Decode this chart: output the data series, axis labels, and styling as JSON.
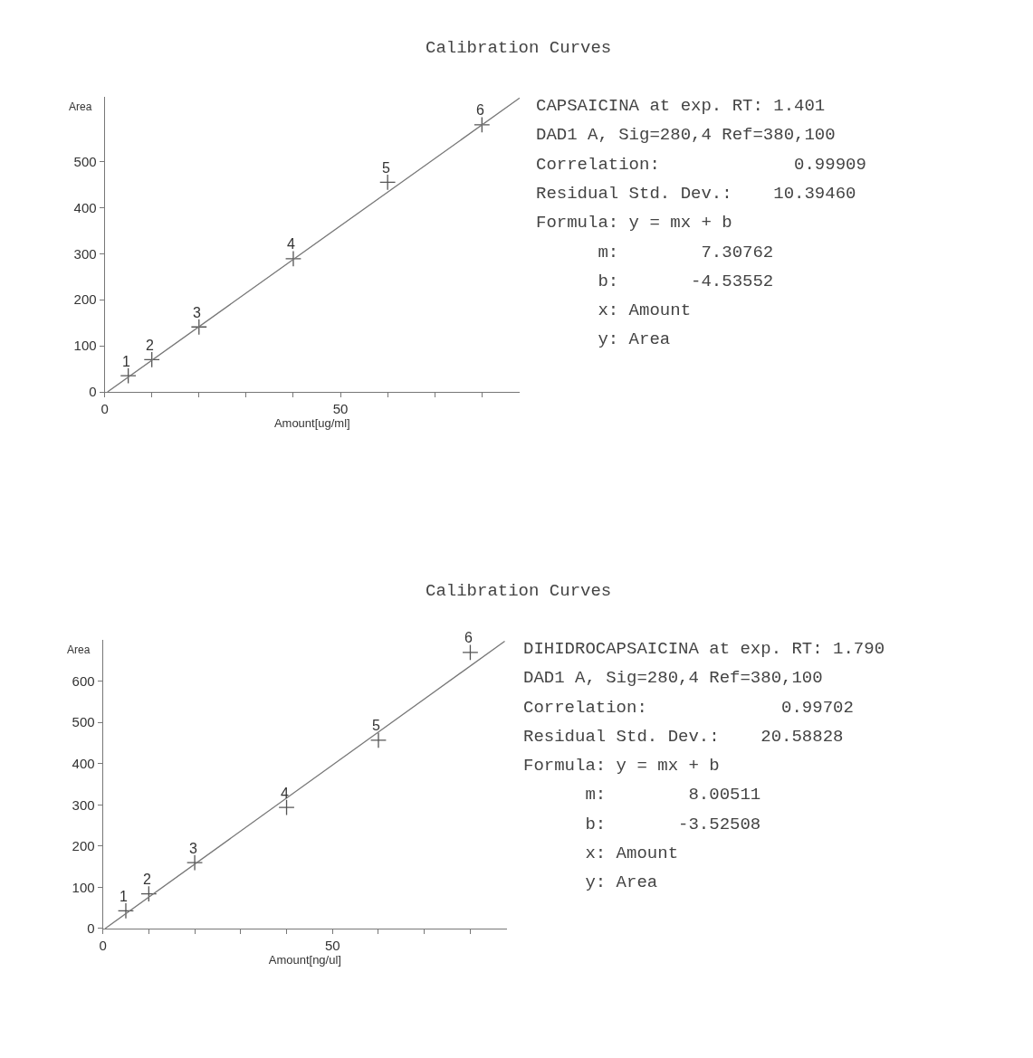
{
  "chart_data": [
    {
      "type": "scatter",
      "title": "Calibration Curves",
      "xlabel": "Amount[ug/ml]",
      "ylabel": "Area",
      "x": [
        5,
        10,
        20,
        40,
        60,
        80
      ],
      "series": [
        {
          "marker": "cross",
          "color": "#555555",
          "values": [
            35,
            70,
            141,
            289,
            455,
            580
          ]
        },
        {
          "type": "line",
          "color": "#777777",
          "x": [
            0.6,
            88
          ],
          "values": [
            0,
            638
          ]
        }
      ],
      "xlim": [
        0,
        88
      ],
      "ylim": [
        0,
        640
      ],
      "xticks": [
        0,
        {
          "value": 10,
          "label": null
        },
        {
          "value": 20,
          "label": null
        },
        {
          "value": 30,
          "label": null
        },
        {
          "value": 40,
          "label": null
        },
        50,
        {
          "value": 60,
          "label": null
        },
        {
          "value": 70,
          "label": null
        },
        {
          "value": 80,
          "label": null
        }
      ],
      "yticks": [
        0,
        100,
        200,
        300,
        400,
        500
      ],
      "annotations": [
        {
          "text": "1",
          "x": 5,
          "y": 35
        },
        {
          "text": "2",
          "x": 10,
          "y": 70
        },
        {
          "text": "3",
          "x": 20,
          "y": 141
        },
        {
          "text": "4",
          "x": 40,
          "y": 289
        },
        {
          "text": "5",
          "x": 60,
          "y": 455
        },
        {
          "text": "6",
          "x": 80,
          "y": 580
        },
        "CAPSAICINA at exp. RT: 1.401",
        "DAD1 A, Sig=280,4 Ref=380,100",
        "Correlation:             0.99909",
        "Residual Std. Dev.:    10.39460",
        "Formula: y = mx + b",
        "      m:        7.30762",
        "      b:       -4.53552",
        "      x: Amount",
        "      y: Area"
      ]
    },
    {
      "type": "scatter",
      "title": "Calibration Curves",
      "xlabel": "Amount[ng/ul]",
      "ylabel": "Area",
      "x": [
        5,
        10,
        20,
        40,
        60,
        80
      ],
      "series": [
        {
          "marker": "cross",
          "color": "#555555",
          "values": [
            43,
            84,
            160,
            294,
            457,
            670
          ]
        },
        {
          "type": "line",
          "color": "#777777",
          "x": [
            0.5,
            87.5
          ],
          "values": [
            0,
            697
          ]
        }
      ],
      "xlim": [
        0,
        88
      ],
      "ylim": [
        0,
        700
      ],
      "xticks": [
        0,
        {
          "value": 10,
          "label": null
        },
        {
          "value": 20,
          "label": null
        },
        {
          "value": 30,
          "label": null
        },
        {
          "value": 40,
          "label": null
        },
        50,
        {
          "value": 60,
          "label": null
        },
        {
          "value": 70,
          "label": null
        },
        {
          "value": 80,
          "label": null
        }
      ],
      "yticks": [
        0,
        100,
        200,
        300,
        400,
        500,
        600
      ],
      "annotations": [
        {
          "text": "1",
          "x": 5,
          "y": 43
        },
        {
          "text": "2",
          "x": 10,
          "y": 84
        },
        {
          "text": "3",
          "x": 20,
          "y": 160
        },
        {
          "text": "4",
          "x": 40,
          "y": 294
        },
        {
          "text": "5",
          "x": 60,
          "y": 457
        },
        {
          "text": "6",
          "x": 80,
          "y": 670
        },
        "DIHIDROCAPSAICINA at exp. RT: 1.790",
        "DAD1 A, Sig=280,4 Ref=380,100",
        "Correlation:             0.99702",
        "Residual Std. Dev.:    20.58828",
        "Formula: y = mx + b",
        "      m:        8.00511",
        "      b:       -3.52508",
        "      x: Amount",
        "      y: Area"
      ]
    }
  ]
}
